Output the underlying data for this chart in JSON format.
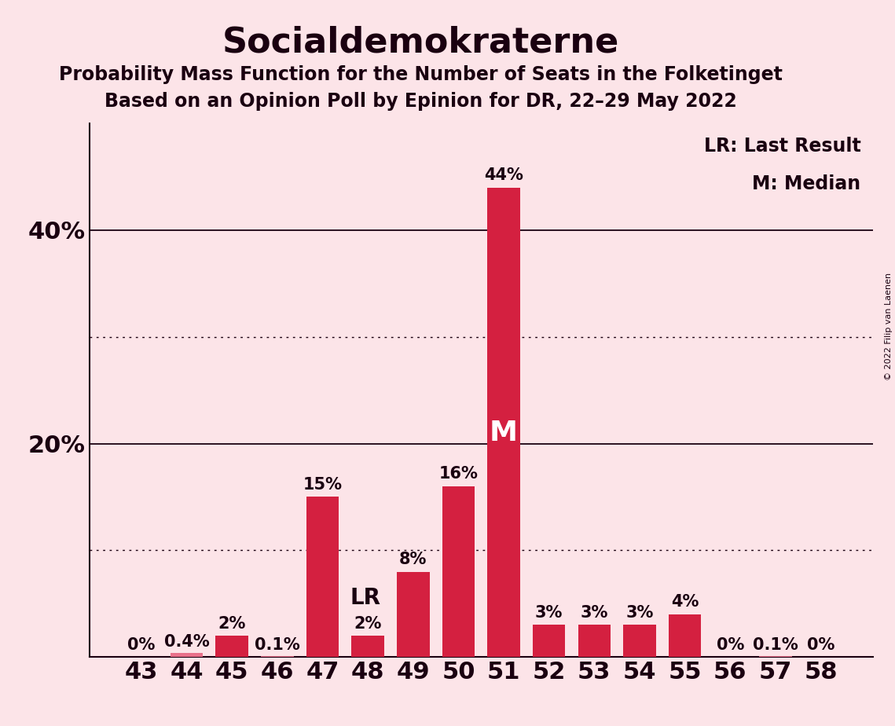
{
  "title": "Socialdemokraterne",
  "subtitle1": "Probability Mass Function for the Number of Seats in the Folketinget",
  "subtitle2": "Based on an Opinion Poll by Epinion for DR, 22–29 May 2022",
  "copyright": "© 2022 Filip van Laenen",
  "seats": [
    43,
    44,
    45,
    46,
    47,
    48,
    49,
    50,
    51,
    52,
    53,
    54,
    55,
    56,
    57,
    58
  ],
  "probabilities": [
    0.0,
    0.4,
    2.0,
    0.1,
    15.0,
    2.0,
    8.0,
    16.0,
    44.0,
    3.0,
    3.0,
    3.0,
    4.0,
    0.0,
    0.1,
    0.0
  ],
  "labels": [
    "0%",
    "0.4%",
    "2%",
    "0.1%",
    "15%",
    "2%",
    "8%",
    "16%",
    "44%",
    "3%",
    "3%",
    "3%",
    "4%",
    "0%",
    "0.1%",
    "0%"
  ],
  "bar_color": "#d42040",
  "bar_color_tiny": "#e8708a",
  "background_color": "#fce4e8",
  "text_color": "#1a0010",
  "lr_seat": 48,
  "median_seat": 51,
  "ylim": [
    0,
    50
  ],
  "legend_lr": "LR: Last Result",
  "legend_m": "M: Median",
  "title_fontsize": 32,
  "subtitle_fontsize": 17,
  "axis_fontsize": 24,
  "label_fontsize": 15,
  "tick_fontsize": 22,
  "copyright_fontsize": 8
}
